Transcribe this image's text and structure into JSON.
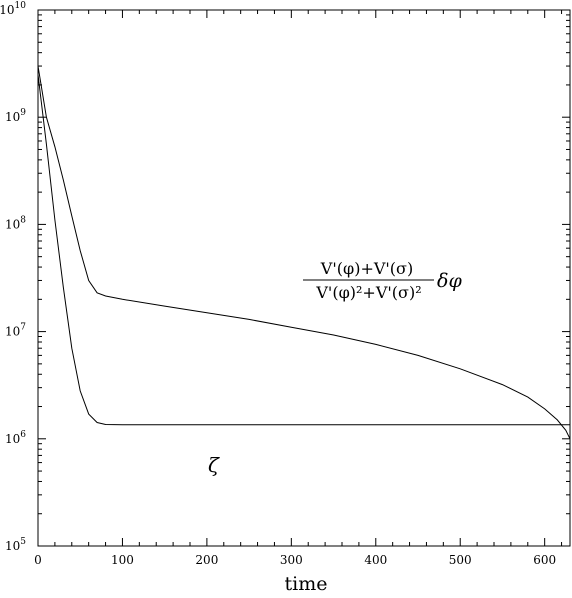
{
  "chart_data": {
    "type": "line",
    "title": "",
    "xlabel": "time",
    "ylabel": "",
    "yscale": "log",
    "xlim": [
      0,
      630
    ],
    "ylim": [
      100000,
      10000000000
    ],
    "x_ticks": [
      "0",
      "100",
      "200",
      "300",
      "400",
      "500",
      "600"
    ],
    "y_ticks": [
      {
        "base": "10",
        "exp": "5"
      },
      {
        "base": "10",
        "exp": "6"
      },
      {
        "base": "10",
        "exp": "7"
      },
      {
        "base": "10",
        "exp": "8"
      },
      {
        "base": "10",
        "exp": "9"
      },
      {
        "base": "10",
        "exp": "10"
      }
    ],
    "grid": false,
    "series": [
      {
        "label": "ratio_expr",
        "color": "#000000",
        "points": [
          [
            0,
            3000000000
          ],
          [
            10,
            1000000000
          ],
          [
            20,
            530000000
          ],
          [
            30,
            260000000
          ],
          [
            40,
            120000000
          ],
          [
            50,
            57000000
          ],
          [
            60,
            30000000
          ],
          [
            70,
            23000000
          ],
          [
            80,
            21500000
          ],
          [
            100,
            20000000
          ],
          [
            150,
            17300000
          ],
          [
            200,
            15000000
          ],
          [
            250,
            13000000
          ],
          [
            300,
            11000000
          ],
          [
            350,
            9300000
          ],
          [
            400,
            7600000
          ],
          [
            450,
            6000000
          ],
          [
            500,
            4500000
          ],
          [
            550,
            3200000
          ],
          [
            580,
            2450000
          ],
          [
            600,
            1900000
          ],
          [
            615,
            1500000
          ],
          [
            625,
            1200000
          ],
          [
            630,
            1000000
          ]
        ]
      },
      {
        "label": "zeta",
        "color": "#000000",
        "points": [
          [
            0,
            2500000000
          ],
          [
            10,
            560000000
          ],
          [
            20,
            110000000
          ],
          [
            30,
            26000000
          ],
          [
            40,
            7000000
          ],
          [
            50,
            2800000
          ],
          [
            60,
            1700000
          ],
          [
            70,
            1420000
          ],
          [
            80,
            1360000
          ],
          [
            100,
            1350000
          ],
          [
            200,
            1350000
          ],
          [
            300,
            1350000
          ],
          [
            400,
            1350000
          ],
          [
            500,
            1350000
          ],
          [
            600,
            1350000
          ],
          [
            630,
            1350000
          ]
        ]
      }
    ],
    "annotations": {
      "ratio_numerator": "V'(φ)+V'(σ)",
      "ratio_denominator": "V'(φ)²+V'(σ)²",
      "ratio_suffix": "δφ",
      "zeta_label": "ζ"
    }
  }
}
